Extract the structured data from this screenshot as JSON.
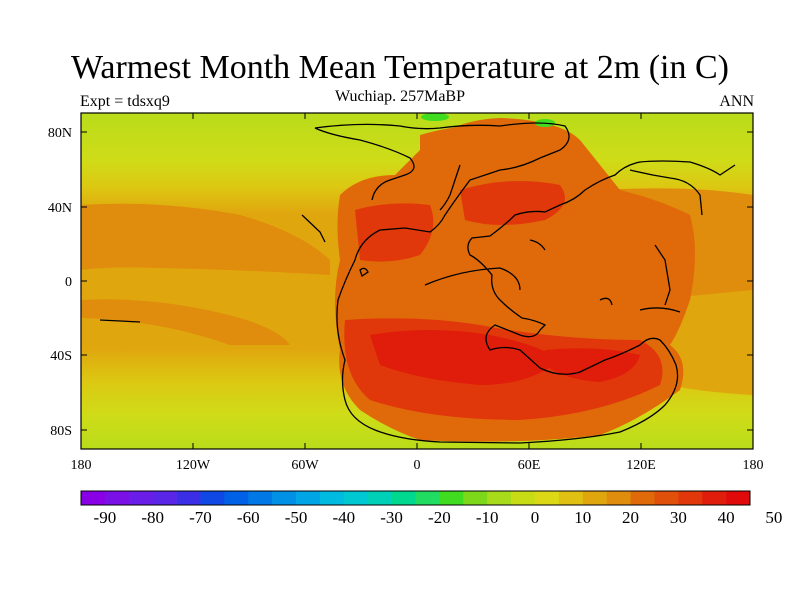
{
  "figure": {
    "title": "Warmest Month Mean Temperature at 2m (in C)",
    "subtitle": "Wuchiap. 257MaBP",
    "left_label": "Expt = tdsxq9",
    "right_label": "ANN"
  },
  "map": {
    "lat_ticks": [
      "80N",
      "40N",
      "0",
      "40S",
      "80S"
    ],
    "lon_ticks": [
      "180",
      "120W",
      "60W",
      "0",
      "60E",
      "120E",
      "180"
    ]
  },
  "colorbar": {
    "labels": [
      "-90",
      "-80",
      "-70",
      "-60",
      "-50",
      "-40",
      "-30",
      "-20",
      "-10",
      "0",
      "10",
      "20",
      "30",
      "40",
      "50"
    ],
    "colors": [
      "#8a00e6",
      "#7a10e6",
      "#6a1de6",
      "#5a25e6",
      "#3a2fe6",
      "#1048e6",
      "#0060e6",
      "#0078e6",
      "#0090e6",
      "#00a5e6",
      "#00bae0",
      "#00c8d2",
      "#00d0b8",
      "#00d890",
      "#20dc60",
      "#40dc20",
      "#7ed81a",
      "#a8dc1a",
      "#c8dc16",
      "#dcd816",
      "#e0c012",
      "#e0a60e",
      "#e08c0c",
      "#e06a0a",
      "#e0500a",
      "#e0380a",
      "#e01c0a",
      "#e00a0a"
    ]
  }
}
